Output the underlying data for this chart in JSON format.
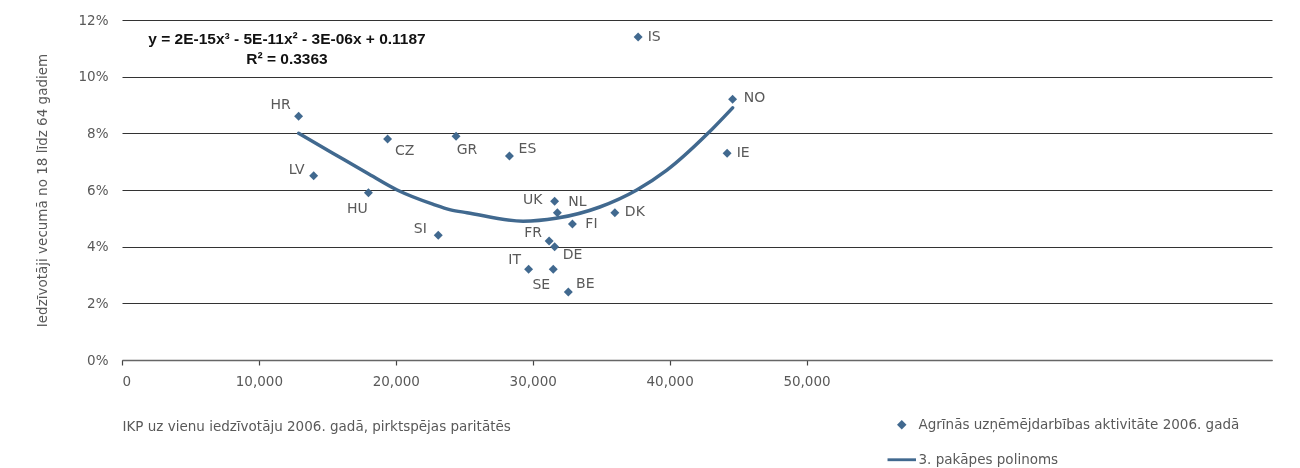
{
  "chart_data": {
    "type": "scatter",
    "xlabel": "IKP uz vienu iedzīvotāju 2006. gadā, pirktspējas paritātēs",
    "ylabel": "Iedzīvotāji vecumā no 18 līdz 64 gadiem",
    "annotations": [
      "y = 2E-15x³ - 5E-11x² - 3E-06x + 0.1187",
      "R² = 0.3363",
      {
        "text": "HR",
        "x": 12900,
        "y": 8.6
      },
      {
        "text": "CZ",
        "x": 19400,
        "y": 7.8
      },
      {
        "text": "GR",
        "x": 24400,
        "y": 7.9
      },
      {
        "text": "ES",
        "x": 28300,
        "y": 7.2
      },
      {
        "text": "IS",
        "x": 37700,
        "y": 11.4
      },
      {
        "text": "NO",
        "x": 44600,
        "y": 9.2
      },
      {
        "text": "IE",
        "x": 44200,
        "y": 7.3
      },
      {
        "text": "LV",
        "x": 14000,
        "y": 6.5
      },
      {
        "text": "HU",
        "x": 18000,
        "y": 5.9
      },
      {
        "text": "SI",
        "x": 23100,
        "y": 4.4
      },
      {
        "text": "UK",
        "x": 31600,
        "y": 5.6
      },
      {
        "text": "NL",
        "x": 31800,
        "y": 5.2
      },
      {
        "text": "FI",
        "x": 32900,
        "y": 4.8
      },
      {
        "text": "DK",
        "x": 36000,
        "y": 5.2
      },
      {
        "text": "FR",
        "x": 31200,
        "y": 4.2
      },
      {
        "text": "DE",
        "x": 31600,
        "y": 4.0
      },
      {
        "text": "IT",
        "x": 29700,
        "y": 3.2
      },
      {
        "text": "SE",
        "x": 31500,
        "y": 3.2
      },
      {
        "text": "BE",
        "x": 32600,
        "y": 2.4
      }
    ],
    "xlim": [
      0,
      84000
    ],
    "xticks": [
      0,
      {
        "value": 10000,
        "label": "10,000"
      },
      {
        "value": 20000,
        "label": "20,000"
      },
      {
        "value": 30000,
        "label": "30,000"
      },
      {
        "value": 40000,
        "label": "40,000"
      },
      {
        "value": 50000,
        "label": "50,000"
      }
    ],
    "ylim": [
      0,
      12
    ],
    "yticks": [
      {
        "value": 0,
        "label": "0%"
      },
      {
        "value": 2,
        "label": "2%"
      },
      {
        "value": 4,
        "label": "4%"
      },
      {
        "value": 6,
        "label": "6%"
      },
      {
        "value": 8,
        "label": "8%"
      },
      {
        "value": 10,
        "label": "10%"
      },
      {
        "value": 12,
        "label": "12%"
      }
    ],
    "grid": "y",
    "legend": "bottom right",
    "series": [
      {
        "name": "Agrīnās uzņēmējdarbības aktivitāte 2006. gadā",
        "marker": "diamond",
        "color": "#41698f",
        "x": [
          12900,
          19400,
          24400,
          28300,
          37700,
          44600,
          44200,
          14000,
          18000,
          23100,
          31600,
          31800,
          32900,
          36000,
          31200,
          31600,
          29700,
          31500,
          32600
        ],
        "values": [
          8.6,
          7.8,
          7.9,
          7.2,
          11.4,
          9.2,
          7.3,
          6.5,
          5.9,
          4.4,
          5.6,
          5.2,
          4.8,
          5.2,
          4.2,
          4.0,
          3.2,
          3.2,
          2.4
        ]
      },
      {
        "name": "3. pakāpes polinoms",
        "type": "line",
        "color": "#41698f",
        "x": [
          12900,
          15400,
          17900,
          20100,
          22700,
          24000,
          25200,
          29300,
          31700,
          34900,
          37600,
          39800,
          42800,
          44600
        ],
        "values": [
          8.0,
          7.3,
          6.6,
          6.0,
          5.5,
          5.3,
          5.2,
          4.9,
          5.0,
          5.4,
          6.0,
          6.7,
          8.0,
          8.9
        ]
      }
    ]
  }
}
